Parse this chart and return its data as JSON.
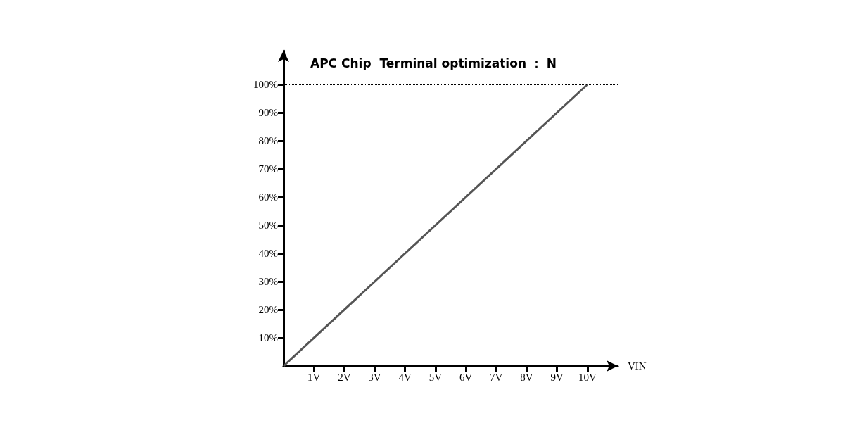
{
  "chart_data": {
    "type": "line",
    "title": "APC Chip  Terminal optimization ： N",
    "xlabel": "VIN",
    "x": [
      0,
      10
    ],
    "series": [
      {
        "color": "#555555",
        "values": [
          0,
          100
        ]
      }
    ],
    "xlim": [
      0,
      11
    ],
    "ylim": [
      0,
      112
    ],
    "xticks": [
      {
        "value": 1,
        "label": "1V"
      },
      {
        "value": 2,
        "label": "2V"
      },
      {
        "value": 3,
        "label": "3V"
      },
      {
        "value": 4,
        "label": "4V"
      },
      {
        "value": 5,
        "label": "5V"
      },
      {
        "value": 6,
        "label": "6V"
      },
      {
        "value": 7,
        "label": "7V"
      },
      {
        "value": 8,
        "label": "8V"
      },
      {
        "value": 9,
        "label": "9V"
      },
      {
        "value": 10,
        "label": "10V"
      }
    ],
    "yticks": [
      {
        "value": 10,
        "label": "10%"
      },
      {
        "value": 20,
        "label": "20%"
      },
      {
        "value": 30,
        "label": "30%"
      },
      {
        "value": 40,
        "label": "40%"
      },
      {
        "value": 50,
        "label": "50%"
      },
      {
        "value": 60,
        "label": "60%"
      },
      {
        "value": 70,
        "label": "70%"
      },
      {
        "value": 80,
        "label": "80%"
      },
      {
        "value": 90,
        "label": "90%"
      },
      {
        "value": 100,
        "label": "100%"
      }
    ],
    "ref_lines": [
      {
        "axis": "y",
        "value": 100,
        "color": "#000000",
        "line_style": "dotted"
      },
      {
        "axis": "x",
        "value": 10,
        "color": "#000000",
        "line_style": "dotted"
      }
    ],
    "grid": false,
    "marker": "none",
    "line_style": "solid"
  }
}
